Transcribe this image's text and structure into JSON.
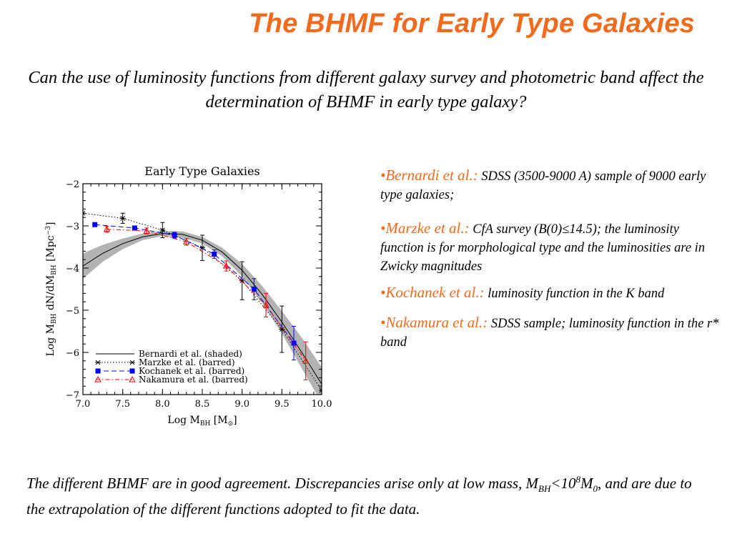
{
  "slide": {
    "title": "The BHMF for Early Type Galaxies",
    "question": "Can the use of luminosity functions from different galaxy survey and photometric band affect the determination of BHMF in early type galaxy?",
    "references": [
      {
        "bullet": "•",
        "name": "Bernardi et al.:",
        "text": " SDSS (3500-9000 A) sample of 9000 early type galaxies;"
      },
      {
        "bullet": "•",
        "name": "Marzke et al.:",
        "text": " CfA survey (B(0)≤14.5); the luminosity function is for morphological type  and the luminosities are in Zwicky magnitudes"
      },
      {
        "bullet": "•",
        "name": "Kochanek et al.:",
        "text": " luminosity function in the K band"
      },
      {
        "bullet": "•",
        "name": "Nakamura et al.:",
        "text": " SDSS sample; luminosity function in the r* band"
      }
    ],
    "conclusion": {
      "part1": "The different BHMF are in good agreement. Discrepancies arise only at low mass, M",
      "sub1": "BH",
      "part2": "<10",
      "sup1": "8",
      "part3": "M",
      "sub2": "0",
      "part4": ", and are due to the extrapolation of the different functions adopted to fit the data."
    }
  },
  "chart_data": {
    "type": "line",
    "title": "Early Type Galaxies",
    "xlabel": "Log M",
    "xlabel_sub": "BH",
    "xlabel_unit": " [M",
    "xlabel_unit_sub": "⊙",
    "xlabel_end": "]",
    "ylabel": "Log M",
    "ylabel_sub1": "BH",
    "ylabel_mid": " dN/dM",
    "ylabel_sub2": "BH",
    "ylabel_unit": " [Mpc",
    "ylabel_sup": "−3",
    "ylabel_end": "]",
    "xlim": [
      7.0,
      10.0
    ],
    "ylim": [
      -7,
      -2
    ],
    "xticks": [
      "7.0",
      "7.5",
      "8.0",
      "8.5",
      "9.0",
      "9.5",
      "10.0"
    ],
    "yticks": [
      "−2",
      "−3",
      "−4",
      "−5",
      "−6",
      "−7"
    ],
    "series": [
      {
        "name": "Bernardi et al. (shaded)",
        "style": "solid",
        "color": "#000000",
        "marker": "none",
        "x": [
          7.0,
          7.25,
          7.5,
          7.75,
          8.0,
          8.25,
          8.5,
          8.75,
          9.0,
          9.25,
          9.5,
          9.75,
          10.0
        ],
        "y": [
          -3.95,
          -3.65,
          -3.42,
          -3.26,
          -3.18,
          -3.2,
          -3.34,
          -3.62,
          -4.05,
          -4.62,
          -5.28,
          -6.0,
          -6.75
        ],
        "band_lower": [
          -4.25,
          -3.85,
          -3.55,
          -3.34,
          -3.24,
          -3.28,
          -3.42,
          -3.72,
          -4.2,
          -4.82,
          -5.55,
          -6.38,
          -7.2
        ],
        "band_upper": [
          -3.65,
          -3.45,
          -3.3,
          -3.18,
          -3.12,
          -3.13,
          -3.26,
          -3.52,
          -3.9,
          -4.42,
          -5.02,
          -5.65,
          -6.35
        ]
      },
      {
        "name": "Marzke et al. (barred)",
        "style": "dotted",
        "color": "#000000",
        "marker": "asterisk",
        "x": [
          7.0,
          7.5,
          8.0,
          8.5,
          9.0,
          9.5,
          10.0
        ],
        "y": [
          -2.7,
          -2.82,
          -3.1,
          -3.52,
          -4.3,
          -5.45,
          -6.9
        ],
        "err": [
          0.0,
          0.12,
          0.18,
          0.3,
          0.45,
          0.55,
          0.7
        ]
      },
      {
        "name": "Kochanek et al. (barred)",
        "style": "dashed",
        "color": "#0000ff",
        "marker": "square",
        "x": [
          7.15,
          7.65,
          8.15,
          8.65,
          9.15,
          9.65
        ],
        "y": [
          -2.97,
          -3.05,
          -3.22,
          -3.67,
          -4.5,
          -5.78
        ],
        "err": [
          0.0,
          0.05,
          0.07,
          0.1,
          0.25,
          0.4
        ]
      },
      {
        "name": "Nakamura et al. (barred)",
        "style": "dashdot",
        "color": "#ff0000",
        "marker": "triangle",
        "x": [
          7.3,
          7.8,
          8.3,
          8.8,
          9.3,
          9.8
        ],
        "y": [
          -3.08,
          -3.12,
          -3.38,
          -3.95,
          -4.88,
          -6.2
        ],
        "err": [
          0.07,
          0.07,
          0.08,
          0.12,
          0.28,
          0.45
        ]
      }
    ]
  }
}
